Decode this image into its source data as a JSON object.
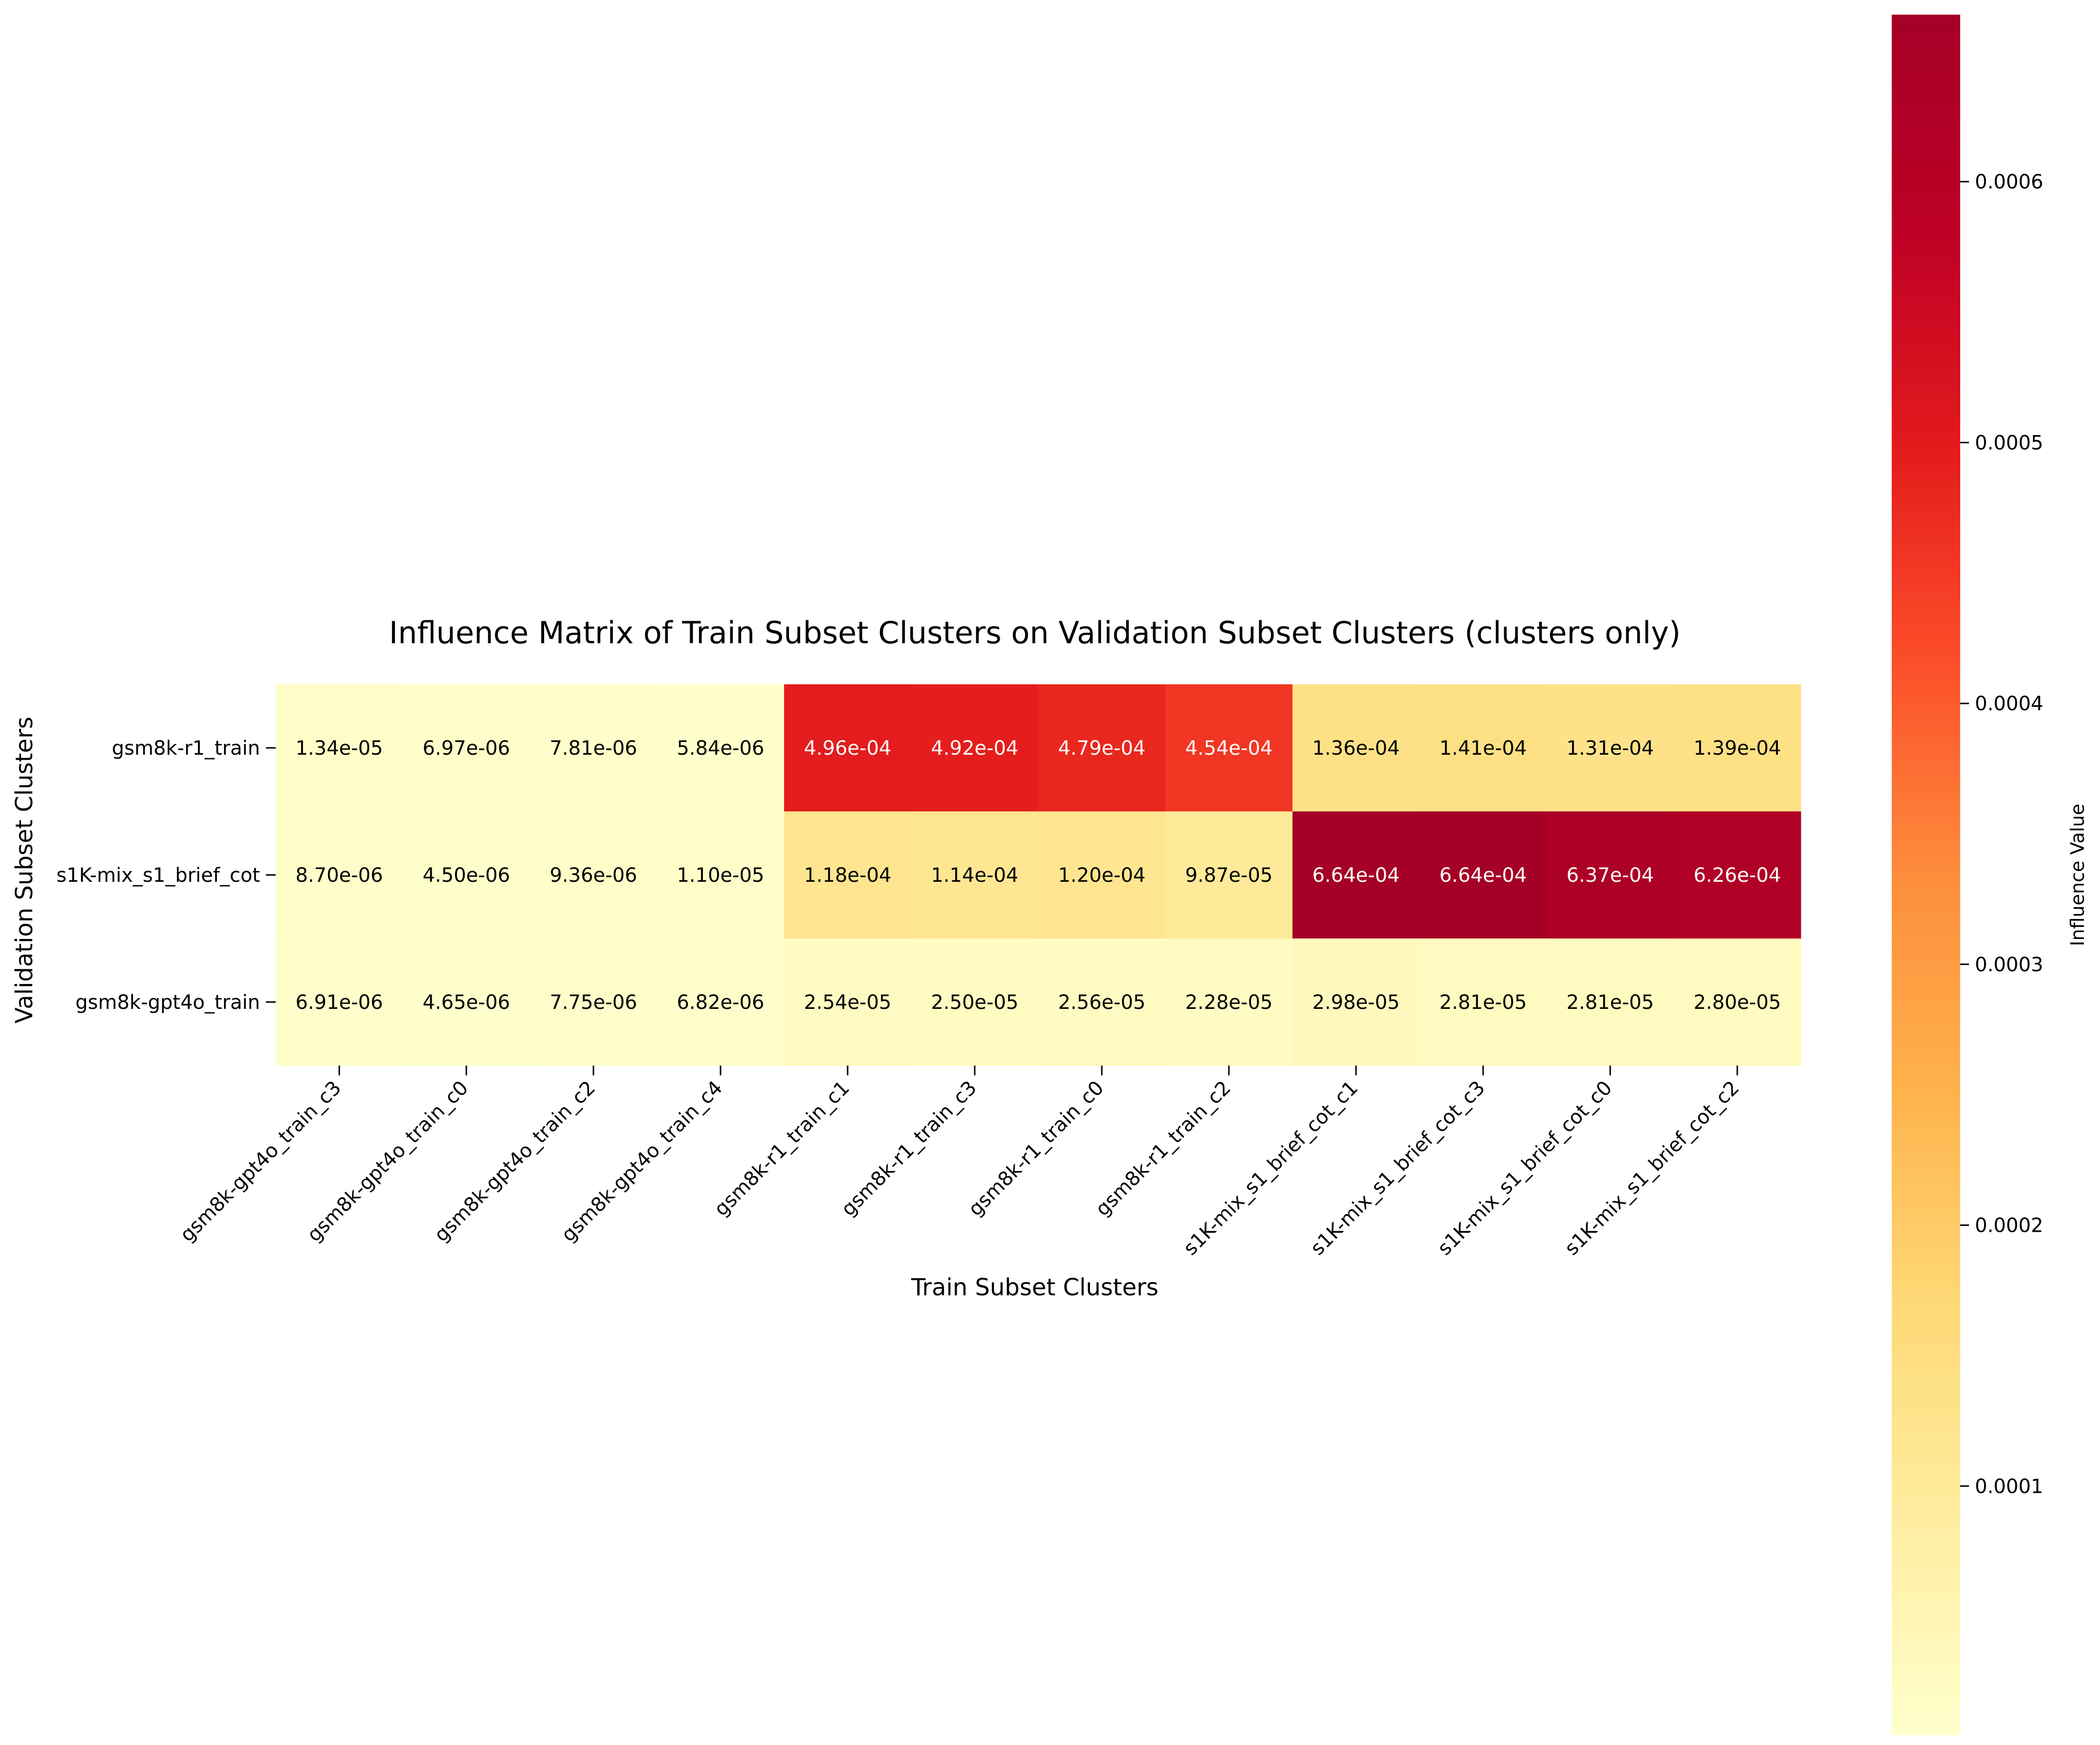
{
  "chart_data": {
    "type": "heatmap",
    "title": "Influence Matrix of Train Subset Clusters on Validation Subset Clusters (clusters only)",
    "xlabel": "Train Subset Clusters",
    "ylabel": "Validation Subset Clusters",
    "x_categories": [
      "gsm8k-gpt4o_train_c3",
      "gsm8k-gpt4o_train_c0",
      "gsm8k-gpt4o_train_c2",
      "gsm8k-gpt4o_train_c4",
      "gsm8k-r1_train_c1",
      "gsm8k-r1_train_c3",
      "gsm8k-r1_train_c0",
      "gsm8k-r1_train_c2",
      "s1K-mix_s1_brief_cot_c1",
      "s1K-mix_s1_brief_cot_c3",
      "s1K-mix_s1_brief_cot_c0",
      "s1K-mix_s1_brief_cot_c2"
    ],
    "y_categories": [
      "gsm8k-r1_train",
      "s1K-mix_s1_brief_cot",
      "gsm8k-gpt4o_train"
    ],
    "values": [
      [
        1.34e-05,
        6.97e-06,
        7.81e-06,
        5.84e-06,
        0.000496,
        0.000492,
        0.000479,
        0.000454,
        0.000136,
        0.000141,
        0.000131,
        0.000139
      ],
      [
        8.7e-06,
        4.5e-06,
        9.36e-06,
        1.1e-05,
        0.000118,
        0.000114,
        0.00012,
        9.87e-05,
        0.000664,
        0.000664,
        0.000637,
        0.000626
      ],
      [
        6.91e-06,
        4.65e-06,
        7.75e-06,
        6.82e-06,
        2.54e-05,
        2.5e-05,
        2.56e-05,
        2.28e-05,
        2.98e-05,
        2.81e-05,
        2.81e-05,
        2.8e-05
      ]
    ],
    "cell_labels": [
      [
        "1.34e-05",
        "6.97e-06",
        "7.81e-06",
        "5.84e-06",
        "4.96e-04",
        "4.92e-04",
        "4.79e-04",
        "4.54e-04",
        "1.36e-04",
        "1.41e-04",
        "1.31e-04",
        "1.39e-04"
      ],
      [
        "8.70e-06",
        "4.50e-06",
        "9.36e-06",
        "1.10e-05",
        "1.18e-04",
        "1.14e-04",
        "1.20e-04",
        "9.87e-05",
        "6.64e-04",
        "6.64e-04",
        "6.37e-04",
        "6.26e-04"
      ],
      [
        "6.91e-06",
        "4.65e-06",
        "7.75e-06",
        "6.82e-06",
        "2.54e-05",
        "2.50e-05",
        "2.56e-05",
        "2.28e-05",
        "2.98e-05",
        "2.81e-05",
        "2.81e-05",
        "2.80e-05"
      ]
    ],
    "colormap": "YlOrRd",
    "colormap_stops": [
      "#ffffcc",
      "#ffeda0",
      "#fed976",
      "#feb24c",
      "#fd8d3c",
      "#fc4e2a",
      "#e31a1c",
      "#bd0026",
      "#a50026"
    ],
    "color_range": [
      4.5e-06,
      0.000664
    ],
    "colorbar": {
      "label": "Influence Value",
      "ticks": [
        0.0001,
        0.0002,
        0.0003,
        0.0004,
        0.0005,
        0.0006
      ],
      "tick_labels": [
        "0.0001",
        "0.0002",
        "0.0003",
        "0.0004",
        "0.0005",
        "0.0006"
      ]
    },
    "grid": false
  }
}
